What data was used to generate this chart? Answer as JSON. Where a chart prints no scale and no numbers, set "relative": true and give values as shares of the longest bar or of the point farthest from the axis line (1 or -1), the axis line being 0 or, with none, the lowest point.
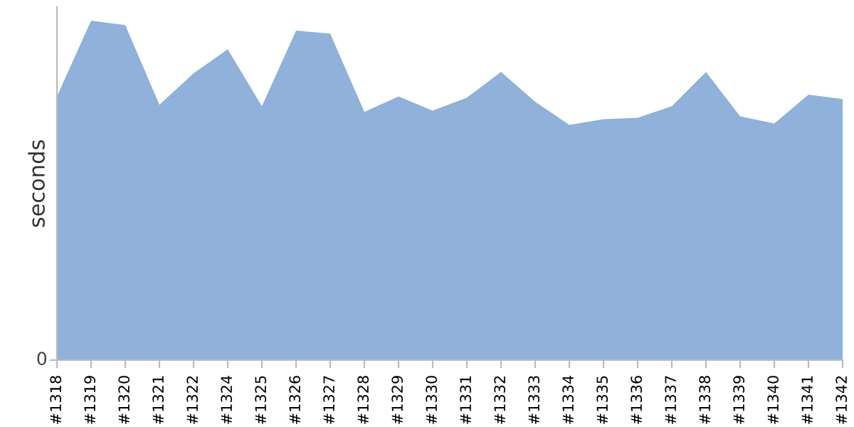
{
  "chart_data": {
    "type": "area",
    "ylabel": "seconds",
    "relative": true,
    "annotations": [
      "0"
    ],
    "grid": false,
    "categories": [
      "#1318",
      "#1319",
      "#1320",
      "#1321",
      "#1322",
      "#1324",
      "#1325",
      "#1326",
      "#1327",
      "#1328",
      "#1329",
      "#1330",
      "#1331",
      "#1332",
      "#1333",
      "#1334",
      "#1335",
      "#1336",
      "#1337",
      "#1338",
      "#1339",
      "#1340",
      "#1341",
      "#1342"
    ],
    "series": [
      {
        "color": "#8fb1da",
        "values": [
          0.777,
          1,
          0.987,
          0.752,
          0.845,
          0.916,
          0.748,
          0.971,
          0.962,
          0.731,
          0.777,
          0.735,
          0.773,
          0.849,
          0.761,
          0.693,
          0.71,
          0.714,
          0.748,
          0.849,
          0.718,
          0.697,
          0.782,
          0.769
        ]
      }
    ]
  }
}
